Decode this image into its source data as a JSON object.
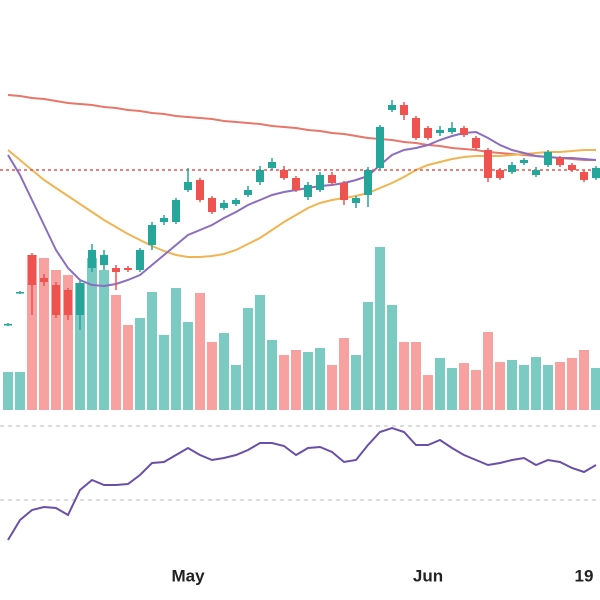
{
  "chart_data": {
    "type": "candlestick",
    "categories": [
      null,
      null,
      null,
      null,
      null,
      null,
      null,
      null,
      null,
      null,
      null,
      null,
      null,
      null,
      null,
      "May",
      null,
      null,
      null,
      null,
      null,
      null,
      null,
      null,
      null,
      null,
      null,
      null,
      null,
      null,
      null,
      null,
      null,
      null,
      null,
      "Jun",
      null,
      null,
      null,
      null,
      null,
      null,
      null,
      null,
      null,
      null,
      null,
      null,
      "19",
      null
    ],
    "open": [
      85,
      117,
      155,
      132,
      125,
      120,
      95,
      142,
      145,
      142,
      142,
      140,
      165,
      188,
      188,
      220,
      230,
      212,
      202,
      206,
      215,
      228,
      242,
      240,
      232,
      213,
      220,
      235,
      227,
      207,
      215,
      242,
      300,
      305,
      292,
      282,
      277,
      278,
      282,
      272,
      260,
      240,
      238,
      247,
      235,
      245,
      252,
      245,
      238,
      232
    ],
    "high": [
      87,
      119,
      157,
      136,
      128,
      122,
      130,
      166,
      160,
      145,
      144,
      162,
      188,
      195,
      212,
      242,
      232,
      214,
      210,
      212,
      224,
      244,
      252,
      244,
      234,
      228,
      238,
      238,
      229,
      214,
      243,
      285,
      310,
      308,
      294,
      284,
      284,
      288,
      284,
      274,
      262,
      242,
      248,
      252,
      243,
      260,
      254,
      247,
      240,
      244
    ],
    "low": [
      84,
      116,
      95,
      124,
      92,
      90,
      80,
      138,
      140,
      120,
      138,
      138,
      160,
      185,
      186,
      218,
      208,
      196,
      200,
      204,
      213,
      225,
      240,
      230,
      218,
      210,
      218,
      225,
      205,
      202,
      203,
      240,
      298,
      290,
      270,
      270,
      274,
      276,
      273,
      260,
      228,
      230,
      236,
      245,
      233,
      243,
      243,
      238,
      228,
      230
    ],
    "close": [
      86,
      118,
      125,
      128,
      95,
      95,
      127,
      160,
      155,
      138,
      140,
      160,
      185,
      192,
      210,
      228,
      210,
      198,
      207,
      210,
      220,
      240,
      248,
      232,
      220,
      225,
      235,
      227,
      210,
      212,
      240,
      283,
      305,
      295,
      272,
      272,
      280,
      282,
      275,
      262,
      232,
      232,
      245,
      250,
      240,
      258,
      245,
      240,
      230,
      242
    ],
    "volume": [
      38,
      38,
      155,
      152,
      140,
      135,
      127,
      152,
      140,
      115,
      85,
      92,
      118,
      75,
      122,
      88,
      117,
      68,
      77,
      45,
      102,
      115,
      70,
      55,
      60,
      58,
      62,
      45,
      72,
      55,
      108,
      163,
      105,
      68,
      68,
      35,
      52,
      42,
      47,
      40,
      78,
      48,
      50,
      45,
      53,
      45,
      48,
      52,
      60,
      42
    ],
    "ylim": [
      0,
      410
    ],
    "volume_ylim": [
      0,
      410
    ],
    "up_color": "#26a69a",
    "down_color": "#ef5350",
    "volume_up_color": "#7ccbc2",
    "volume_down_color": "#f7a1a0",
    "series": [
      {
        "color": "#e8776a",
        "values": [
          315,
          314,
          312,
          311,
          309,
          307,
          306,
          305,
          303,
          302,
          300,
          299,
          297,
          296,
          294,
          293,
          292,
          291,
          289,
          288,
          287,
          286,
          284,
          283,
          282,
          280,
          279,
          277,
          276,
          274,
          272,
          271,
          270,
          268,
          267,
          265,
          264,
          262,
          261,
          260,
          258,
          257,
          256,
          255,
          254,
          253,
          252,
          251,
          250,
          250
        ]
      },
      {
        "color": "#f0b552",
        "values": [
          260,
          250,
          240,
          230,
          222,
          214,
          206,
          198,
          190,
          183,
          176,
          170,
          164,
          159,
          155,
          153,
          153,
          154,
          156,
          160,
          166,
          172,
          180,
          188,
          195,
          202,
          207,
          210,
          212,
          214,
          217,
          222,
          227,
          233,
          240,
          245,
          248,
          251,
          253,
          254,
          254,
          254,
          255,
          256,
          257,
          258,
          258,
          259,
          260,
          260
        ]
      },
      {
        "color": "#8a6fc0",
        "values": [
          255,
          235,
          210,
          185,
          160,
          142,
          130,
          125,
          124,
          126,
          130,
          135,
          145,
          155,
          165,
          175,
          180,
          185,
          192,
          198,
          205,
          210,
          215,
          218,
          220,
          222,
          224,
          225,
          227,
          230,
          234,
          245,
          255,
          260,
          262,
          265,
          270,
          274,
          277,
          278,
          272,
          265,
          260,
          257,
          254,
          253,
          252,
          252,
          251,
          250
        ]
      }
    ],
    "price_line": {
      "value": 240,
      "color": "#e8534a"
    },
    "rsi": {
      "color": "#6a4fa8",
      "ylim": [
        0,
        120
      ],
      "ref_lines": [
        119,
        45
      ],
      "values": [
        5,
        25,
        35,
        38,
        37,
        30,
        55,
        65,
        60,
        60,
        61,
        70,
        82,
        83,
        90,
        97,
        90,
        85,
        87,
        90,
        95,
        102,
        102,
        99,
        90,
        97,
        98,
        93,
        83,
        85,
        100,
        113,
        117,
        113,
        100,
        100,
        105,
        97,
        90,
        85,
        80,
        82,
        85,
        87,
        80,
        85,
        83,
        77,
        73,
        80
      ]
    }
  }
}
